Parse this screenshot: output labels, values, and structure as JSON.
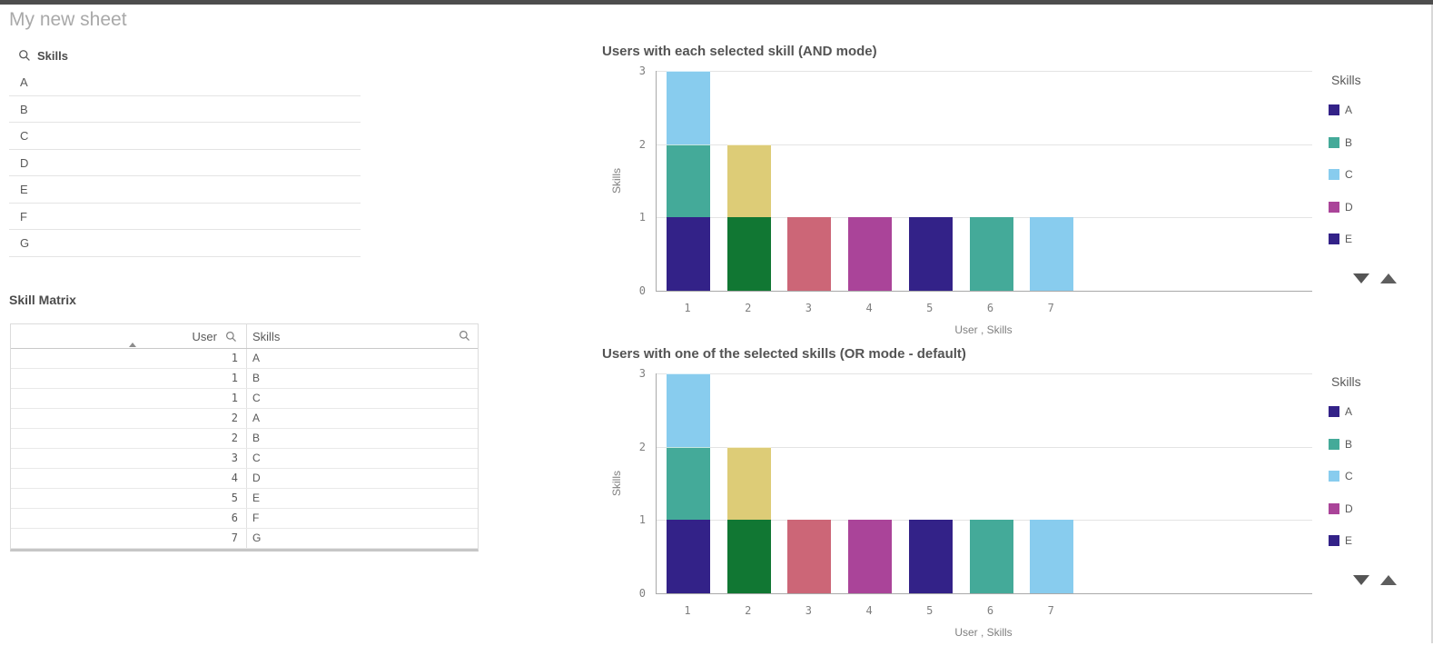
{
  "sheet": {
    "title": "My new sheet"
  },
  "skills_filter": {
    "label": "Skills",
    "icon": "search-icon",
    "items": [
      "A",
      "B",
      "C",
      "D",
      "E",
      "F",
      "G"
    ]
  },
  "skill_matrix": {
    "title": "Skill Matrix",
    "columns": [
      {
        "label": "User",
        "align": "right",
        "sort": "ascending",
        "icon": "search-icon"
      },
      {
        "label": "Skills",
        "align": "left",
        "icon": "search-icon"
      }
    ],
    "rows": [
      [
        "1",
        "A"
      ],
      [
        "1",
        "B"
      ],
      [
        "1",
        "C"
      ],
      [
        "2",
        "A"
      ],
      [
        "2",
        "B"
      ],
      [
        "3",
        "C"
      ],
      [
        "4",
        "D"
      ],
      [
        "5",
        "E"
      ],
      [
        "6",
        "F"
      ],
      [
        "7",
        "G"
      ]
    ]
  },
  "chart_data": [
    {
      "type": "bar",
      "stacked": true,
      "title": "Users with each selected skill (AND mode)",
      "xlabel": "User , Skills",
      "ylabel": "Skills",
      "x": [
        "1",
        "2",
        "3",
        "4",
        "5",
        "6",
        "7"
      ],
      "ylim": [
        0,
        3
      ],
      "yticks": [
        0,
        1,
        2,
        3
      ],
      "grid": "horizontal",
      "bars": [
        {
          "x": "1",
          "total": 3,
          "segments": [
            {
              "skill": "A",
              "value": 1,
              "color": "#332288"
            },
            {
              "skill": "B",
              "value": 1,
              "color": "#44AA99"
            },
            {
              "skill": "C",
              "value": 1,
              "color": "#88CCEE"
            }
          ]
        },
        {
          "x": "2",
          "total": 2,
          "segments": [
            {
              "skill": "A",
              "value": 1,
              "color": "#117733"
            },
            {
              "skill": "B",
              "value": 1,
              "color": "#DDCC77"
            }
          ]
        },
        {
          "x": "3",
          "total": 1,
          "segments": [
            {
              "skill": "C",
              "value": 1,
              "color": "#CC6677"
            }
          ]
        },
        {
          "x": "4",
          "total": 1,
          "segments": [
            {
              "skill": "D",
              "value": 1,
              "color": "#AA4499"
            }
          ]
        },
        {
          "x": "5",
          "total": 1,
          "segments": [
            {
              "skill": "E",
              "value": 1,
              "color": "#332288"
            }
          ]
        },
        {
          "x": "6",
          "total": 1,
          "segments": [
            {
              "skill": "F",
              "value": 1,
              "color": "#44AA99"
            }
          ]
        },
        {
          "x": "7",
          "total": 1,
          "segments": [
            {
              "skill": "G",
              "value": 1,
              "color": "#88CCEE"
            }
          ]
        }
      ],
      "legend": {
        "title": "Skills",
        "position": "right",
        "items": [
          {
            "label": "A",
            "color": "#332288"
          },
          {
            "label": "B",
            "color": "#44AA99"
          },
          {
            "label": "C",
            "color": "#88CCEE"
          },
          {
            "label": "D",
            "color": "#AA4499"
          },
          {
            "label": "E",
            "color": "#332288"
          }
        ],
        "pager_icons": [
          "triangle-down-icon",
          "triangle-up-icon"
        ]
      }
    },
    {
      "type": "bar",
      "stacked": true,
      "title": "Users with one of the selected skills (OR mode - default)",
      "xlabel": "User , Skills",
      "ylabel": "Skills",
      "x": [
        "1",
        "2",
        "3",
        "4",
        "5",
        "6",
        "7"
      ],
      "ylim": [
        0,
        3
      ],
      "yticks": [
        0,
        1,
        2,
        3
      ],
      "grid": "horizontal",
      "bars": [
        {
          "x": "1",
          "total": 3,
          "segments": [
            {
              "skill": "A",
              "value": 1,
              "color": "#332288"
            },
            {
              "skill": "B",
              "value": 1,
              "color": "#44AA99"
            },
            {
              "skill": "C",
              "value": 1,
              "color": "#88CCEE"
            }
          ]
        },
        {
          "x": "2",
          "total": 2,
          "segments": [
            {
              "skill": "A",
              "value": 1,
              "color": "#117733"
            },
            {
              "skill": "B",
              "value": 1,
              "color": "#DDCC77"
            }
          ]
        },
        {
          "x": "3",
          "total": 1,
          "segments": [
            {
              "skill": "C",
              "value": 1,
              "color": "#CC6677"
            }
          ]
        },
        {
          "x": "4",
          "total": 1,
          "segments": [
            {
              "skill": "D",
              "value": 1,
              "color": "#AA4499"
            }
          ]
        },
        {
          "x": "5",
          "total": 1,
          "segments": [
            {
              "skill": "E",
              "value": 1,
              "color": "#332288"
            }
          ]
        },
        {
          "x": "6",
          "total": 1,
          "segments": [
            {
              "skill": "F",
              "value": 1,
              "color": "#44AA99"
            }
          ]
        },
        {
          "x": "7",
          "total": 1,
          "segments": [
            {
              "skill": "G",
              "value": 1,
              "color": "#88CCEE"
            }
          ]
        }
      ],
      "legend": {
        "title": "Skills",
        "position": "right",
        "items": [
          {
            "label": "A",
            "color": "#332288"
          },
          {
            "label": "B",
            "color": "#44AA99"
          },
          {
            "label": "C",
            "color": "#88CCEE"
          },
          {
            "label": "D",
            "color": "#AA4499"
          },
          {
            "label": "E",
            "color": "#332288"
          }
        ],
        "pager_icons": [
          "triangle-down-icon",
          "triangle-up-icon"
        ]
      }
    }
  ]
}
